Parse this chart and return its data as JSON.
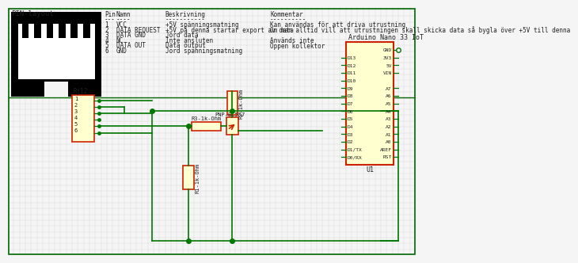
{
  "bg_color": "#f5f5f5",
  "grid_color": "#d8d8d8",
  "wire_color": "#007700",
  "component_border": "#cc2200",
  "component_fill": "#ffffd0",
  "text_color": "#222222",
  "title": "PIN-layout",
  "pin_table_headers": [
    "Pin",
    "Namn",
    "Beskrivning",
    "Kommentar"
  ],
  "pin_rows": [
    [
      "1",
      "VCC",
      "+5V spänningsmatning",
      "Kan användas för att driva utrustning"
    ],
    [
      "2",
      "DATA REQUEST",
      "+5V på denna startar export av data",
      "Om man alltid vill att utrustningen skall skicka data så bygla över +5V till denna"
    ],
    [
      "3",
      "DATA GND",
      "Jord data",
      ""
    ],
    [
      "4",
      "NC",
      "Inte ansluten",
      "Används inte"
    ],
    [
      "5",
      "DATA OUT",
      "Data output",
      "Öppen kollektor"
    ],
    [
      "6",
      "GND",
      "Jord spänningsmatning",
      ""
    ]
  ],
  "rj12_label": "Rj12",
  "rj12_pins": [
    "1",
    "2",
    "3",
    "4",
    "5",
    "6"
  ],
  "r1_label": "R1-1k-Ohm",
  "r2_label": "R2-1k-Ohm",
  "r3_label": "R3-1k-Ohm",
  "transistor_label": "PNP-BC557",
  "arduino_label": "Arduino Nano 33 IoT",
  "arduino_pins_left": [
    "D13",
    "D12",
    "D11",
    "D10",
    "D9",
    "D8",
    "D7",
    "D6",
    "D5",
    "D4",
    "D3",
    "D2",
    "D1/TX",
    "D0/RX"
  ],
  "arduino_pins_right": [
    "GND",
    "3V3",
    "5V",
    "VIN",
    "",
    "A7",
    "A6",
    "A5",
    "A4",
    "A3",
    "A2",
    "A1",
    "A0",
    "AREF",
    "RST"
  ],
  "u1_label": "U1"
}
